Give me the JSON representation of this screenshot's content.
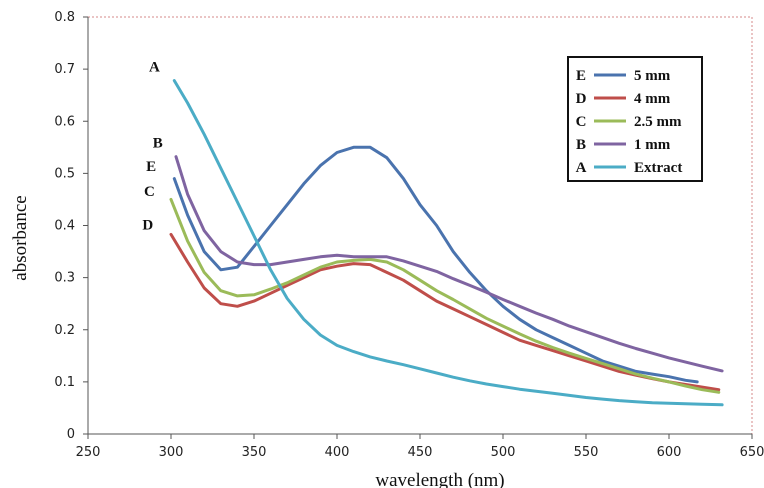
{
  "chart_data": {
    "type": "line",
    "xlabel": "wavelength (nm)",
    "ylabel": "absorbance",
    "xlim": [
      250,
      650
    ],
    "ylim": [
      0,
      0.8
    ],
    "xticks": [
      250,
      300,
      350,
      400,
      450,
      500,
      550,
      600,
      650
    ],
    "yticks": [
      0,
      0.1,
      0.2,
      0.3,
      0.4,
      0.5,
      0.6,
      0.7,
      0.8
    ],
    "ytick_labels": [
      "0",
      "0.1",
      "0.2",
      "0.3",
      "0.4",
      "0.5",
      "0.6",
      "0.7",
      "0.8"
    ],
    "grid": false,
    "legend_position": "top-right",
    "series": [
      {
        "name": "5 mm",
        "letter": "E",
        "color": "#4a73ae",
        "points": [
          [
            302,
            0.49
          ],
          [
            310,
            0.42
          ],
          [
            320,
            0.35
          ],
          [
            330,
            0.315
          ],
          [
            340,
            0.32
          ],
          [
            350,
            0.36
          ],
          [
            360,
            0.4
          ],
          [
            370,
            0.44
          ],
          [
            380,
            0.48
          ],
          [
            390,
            0.515
          ],
          [
            400,
            0.54
          ],
          [
            410,
            0.55
          ],
          [
            420,
            0.55
          ],
          [
            430,
            0.53
          ],
          [
            440,
            0.49
          ],
          [
            450,
            0.44
          ],
          [
            460,
            0.4
          ],
          [
            470,
            0.35
          ],
          [
            480,
            0.31
          ],
          [
            490,
            0.275
          ],
          [
            500,
            0.245
          ],
          [
            510,
            0.22
          ],
          [
            520,
            0.2
          ],
          [
            530,
            0.185
          ],
          [
            540,
            0.17
          ],
          [
            550,
            0.155
          ],
          [
            560,
            0.14
          ],
          [
            570,
            0.13
          ],
          [
            580,
            0.12
          ],
          [
            590,
            0.115
          ],
          [
            600,
            0.11
          ],
          [
            610,
            0.103
          ],
          [
            617,
            0.1
          ]
        ]
      },
      {
        "name": "4 mm",
        "letter": "D",
        "color": "#bf4e4a",
        "points": [
          [
            300,
            0.383
          ],
          [
            310,
            0.33
          ],
          [
            320,
            0.28
          ],
          [
            330,
            0.25
          ],
          [
            340,
            0.245
          ],
          [
            350,
            0.255
          ],
          [
            360,
            0.27
          ],
          [
            370,
            0.285
          ],
          [
            380,
            0.3
          ],
          [
            390,
            0.315
          ],
          [
            400,
            0.322
          ],
          [
            410,
            0.327
          ],
          [
            420,
            0.325
          ],
          [
            430,
            0.31
          ],
          [
            440,
            0.295
          ],
          [
            450,
            0.275
          ],
          [
            460,
            0.255
          ],
          [
            470,
            0.24
          ],
          [
            480,
            0.225
          ],
          [
            490,
            0.21
          ],
          [
            500,
            0.195
          ],
          [
            510,
            0.18
          ],
          [
            520,
            0.17
          ],
          [
            530,
            0.16
          ],
          [
            540,
            0.15
          ],
          [
            550,
            0.14
          ],
          [
            560,
            0.13
          ],
          [
            570,
            0.12
          ],
          [
            580,
            0.113
          ],
          [
            590,
            0.106
          ],
          [
            600,
            0.1
          ],
          [
            610,
            0.095
          ],
          [
            620,
            0.09
          ],
          [
            630,
            0.085
          ]
        ]
      },
      {
        "name": "2.5 mm",
        "letter": "C",
        "color": "#9bbb59",
        "points": [
          [
            300,
            0.45
          ],
          [
            310,
            0.37
          ],
          [
            320,
            0.31
          ],
          [
            330,
            0.275
          ],
          [
            340,
            0.265
          ],
          [
            350,
            0.267
          ],
          [
            360,
            0.278
          ],
          [
            370,
            0.29
          ],
          [
            380,
            0.305
          ],
          [
            390,
            0.32
          ],
          [
            400,
            0.33
          ],
          [
            410,
            0.333
          ],
          [
            420,
            0.335
          ],
          [
            430,
            0.33
          ],
          [
            440,
            0.315
          ],
          [
            450,
            0.295
          ],
          [
            460,
            0.275
          ],
          [
            470,
            0.258
          ],
          [
            480,
            0.24
          ],
          [
            490,
            0.222
          ],
          [
            500,
            0.207
          ],
          [
            510,
            0.192
          ],
          [
            520,
            0.178
          ],
          [
            530,
            0.166
          ],
          [
            540,
            0.155
          ],
          [
            550,
            0.145
          ],
          [
            560,
            0.135
          ],
          [
            570,
            0.125
          ],
          [
            580,
            0.115
          ],
          [
            590,
            0.107
          ],
          [
            600,
            0.1
          ],
          [
            610,
            0.092
          ],
          [
            620,
            0.085
          ],
          [
            630,
            0.08
          ]
        ]
      },
      {
        "name": "1 mm",
        "letter": "B",
        "color": "#7f64a1",
        "points": [
          [
            303,
            0.532
          ],
          [
            310,
            0.46
          ],
          [
            320,
            0.39
          ],
          [
            330,
            0.35
          ],
          [
            340,
            0.33
          ],
          [
            350,
            0.325
          ],
          [
            360,
            0.325
          ],
          [
            370,
            0.33
          ],
          [
            380,
            0.335
          ],
          [
            390,
            0.34
          ],
          [
            400,
            0.343
          ],
          [
            410,
            0.34
          ],
          [
            420,
            0.34
          ],
          [
            430,
            0.34
          ],
          [
            440,
            0.332
          ],
          [
            450,
            0.322
          ],
          [
            460,
            0.312
          ],
          [
            470,
            0.298
          ],
          [
            480,
            0.285
          ],
          [
            490,
            0.272
          ],
          [
            500,
            0.258
          ],
          [
            510,
            0.245
          ],
          [
            520,
            0.232
          ],
          [
            530,
            0.22
          ],
          [
            540,
            0.207
          ],
          [
            550,
            0.196
          ],
          [
            560,
            0.185
          ],
          [
            570,
            0.174
          ],
          [
            580,
            0.164
          ],
          [
            590,
            0.155
          ],
          [
            600,
            0.146
          ],
          [
            610,
            0.138
          ],
          [
            620,
            0.13
          ],
          [
            632,
            0.121
          ]
        ]
      },
      {
        "name": "Extract",
        "letter": "A",
        "color": "#4bacc6",
        "points": [
          [
            302,
            0.678
          ],
          [
            310,
            0.635
          ],
          [
            320,
            0.575
          ],
          [
            330,
            0.51
          ],
          [
            340,
            0.445
          ],
          [
            350,
            0.38
          ],
          [
            360,
            0.315
          ],
          [
            370,
            0.26
          ],
          [
            380,
            0.22
          ],
          [
            390,
            0.19
          ],
          [
            400,
            0.17
          ],
          [
            410,
            0.158
          ],
          [
            420,
            0.148
          ],
          [
            430,
            0.14
          ],
          [
            440,
            0.133
          ],
          [
            450,
            0.125
          ],
          [
            460,
            0.117
          ],
          [
            470,
            0.109
          ],
          [
            480,
            0.102
          ],
          [
            490,
            0.096
          ],
          [
            500,
            0.091
          ],
          [
            510,
            0.086
          ],
          [
            520,
            0.082
          ],
          [
            530,
            0.078
          ],
          [
            540,
            0.074
          ],
          [
            550,
            0.07
          ],
          [
            560,
            0.067
          ],
          [
            570,
            0.064
          ],
          [
            580,
            0.062
          ],
          [
            590,
            0.06
          ],
          [
            600,
            0.059
          ],
          [
            610,
            0.058
          ],
          [
            620,
            0.057
          ],
          [
            632,
            0.056
          ]
        ]
      }
    ],
    "curve_labels": [
      {
        "text": "A",
        "x": 290,
        "y": 0.695
      },
      {
        "text": "B",
        "x": 292,
        "y": 0.55
      },
      {
        "text": "E",
        "x": 288,
        "y": 0.505
      },
      {
        "text": "C",
        "x": 287,
        "y": 0.457
      },
      {
        "text": "D",
        "x": 286,
        "y": 0.392
      }
    ],
    "legend": [
      {
        "letter": "E",
        "label": "5 mm",
        "color": "#4a73ae"
      },
      {
        "letter": "D",
        "label": "4 mm",
        "color": "#bf4e4a"
      },
      {
        "letter": "C",
        "label": "2.5 mm",
        "color": "#9bbb59"
      },
      {
        "letter": "B",
        "label": "1 mm",
        "color": "#7f64a1"
      },
      {
        "letter": "A",
        "label": "Extract",
        "color": "#4bacc6"
      }
    ]
  }
}
